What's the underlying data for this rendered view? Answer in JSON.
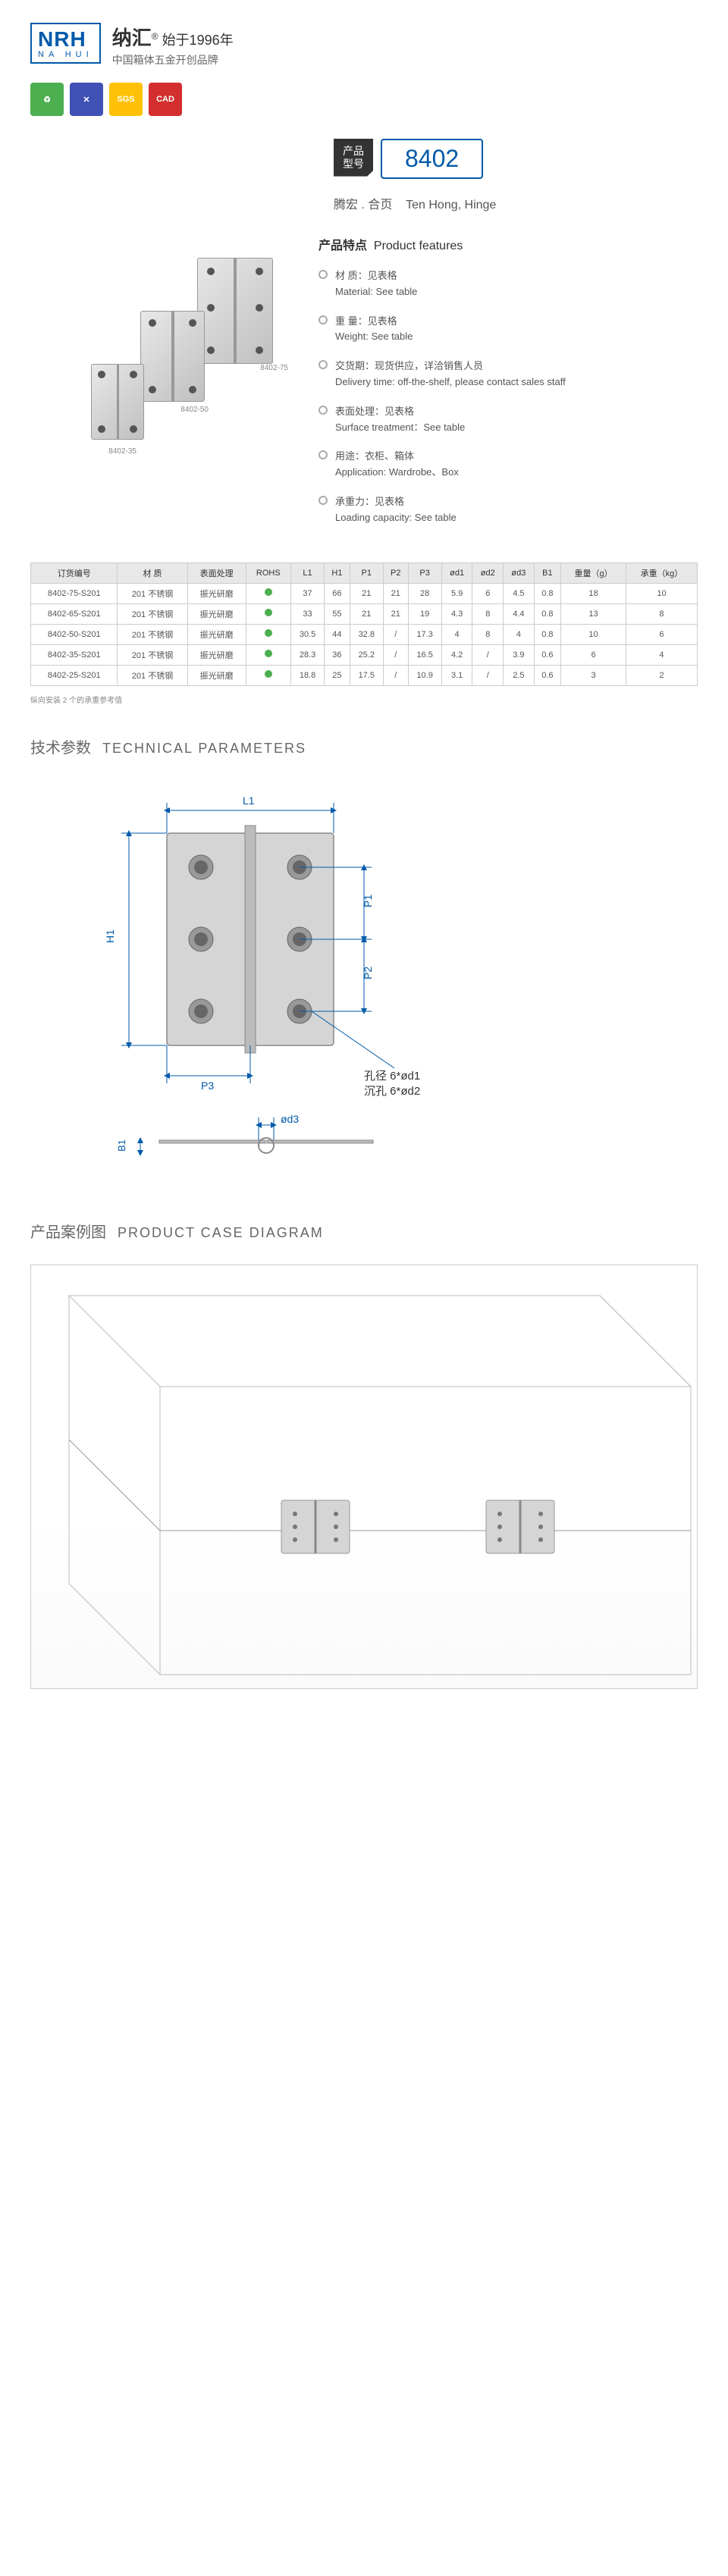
{
  "header": {
    "logo": "NRH",
    "logo_sub": "NA HUI",
    "brand_cn": "纳汇",
    "tagline": "始于1996年",
    "tagline_sub": "中国箱体五金开创品牌"
  },
  "icons": [
    {
      "label": "绿",
      "color": "#4caf50"
    },
    {
      "label": "✕",
      "color": "#3f51b5"
    },
    {
      "label": "SGS",
      "color": "#ffc107"
    },
    {
      "label": "CAD",
      "color": "#d32f2f"
    }
  ],
  "product": {
    "model_label": "产品\n型号",
    "model": "8402",
    "name_cn": "腾宏 . 合页",
    "name_en": "Ten Hong, Hinge",
    "img_labels": {
      "lg": "8402-75",
      "md": "8402-50",
      "sm": "8402-35"
    }
  },
  "features": {
    "title_cn": "产品特点",
    "title_en": "Product features",
    "items": [
      {
        "cn": "材 质：见表格",
        "en": "Material: See table"
      },
      {
        "cn": "重 量：见表格",
        "en": "Weight: See table"
      },
      {
        "cn": "交货期：现货供应，详洽销售人员",
        "en": "Delivery time: off-the-shelf, please contact sales staff"
      },
      {
        "cn": "表面处理：见表格",
        "en": "Surface treatment：See table"
      },
      {
        "cn": "用途：衣柜、箱体",
        "en": "Application: Wardrobe、Box"
      },
      {
        "cn": "承重力：见表格",
        "en": "Loading capacity: See table"
      }
    ]
  },
  "spec_table": {
    "headers": [
      "订货编号",
      "材 质",
      "表面处理",
      "ROHS",
      "L1",
      "H1",
      "P1",
      "P2",
      "P3",
      "ød1",
      "ød2",
      "ød3",
      "B1",
      "重量（g）",
      "承重（kg）"
    ],
    "rows": [
      [
        "8402-75-S201",
        "201 不锈钢",
        "振光研磨",
        "●",
        "37",
        "66",
        "21",
        "21",
        "28",
        "5.9",
        "6",
        "4.5",
        "0.8",
        "18",
        "10"
      ],
      [
        "8402-65-S201",
        "201 不锈钢",
        "振光研磨",
        "●",
        "33",
        "55",
        "21",
        "21",
        "19",
        "4.3",
        "8",
        "4.4",
        "0.8",
        "13",
        "8"
      ],
      [
        "8402-50-S201",
        "201 不锈钢",
        "振光研磨",
        "●",
        "30.5",
        "44",
        "32.8",
        "/",
        "17.3",
        "4",
        "8",
        "4",
        "0.8",
        "10",
        "6"
      ],
      [
        "8402-35-S201",
        "201 不锈钢",
        "振光研磨",
        "●",
        "28.3",
        "36",
        "25.2",
        "/",
        "16.5",
        "4.2",
        "/",
        "3.9",
        "0.6",
        "6",
        "4"
      ],
      [
        "8402-25-S201",
        "201 不锈钢",
        "振光研磨",
        "●",
        "18.8",
        "25",
        "17.5",
        "/",
        "10.9",
        "3.1",
        "/",
        "2.5",
        "0.6",
        "3",
        "2"
      ]
    ],
    "note": "纵向安装 2 个的承重参考值"
  },
  "sections": {
    "tech_cn": "技术参数",
    "tech_en": "TECHNICAL PARAMETERS",
    "case_cn": "产品案例图",
    "case_en": "PRODUCT CASE DIAGRAM"
  },
  "diagram": {
    "labels": {
      "L1": "L1",
      "H1": "H1",
      "P1": "P1",
      "P2": "P2",
      "P3": "P3",
      "B1": "B1",
      "d3": "ød3"
    },
    "hole_note1": "孔径 6*ød1",
    "hole_note2": "沉孔 6*ød2",
    "colors": {
      "line": "#005aaa",
      "fill": "#d5d5d5",
      "stroke": "#888"
    }
  }
}
